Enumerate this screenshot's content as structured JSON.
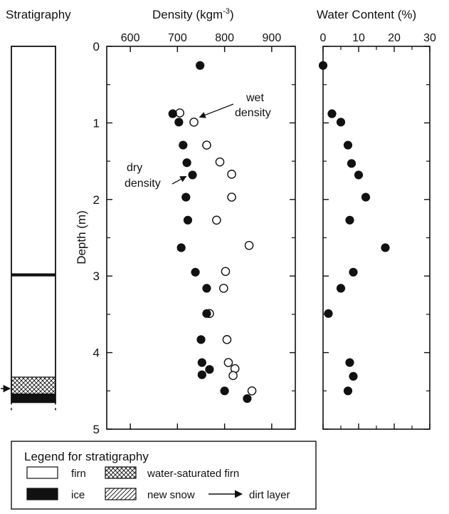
{
  "headers": {
    "stratigraphy": "Stratigraphy",
    "density": "Density (kgm",
    "density_sup": "-3",
    "density_close": ")",
    "water": "Water Content  (%)"
  },
  "chart_data": [
    {
      "type": "scatter",
      "panel": "density",
      "title": "Density (kgm-3)",
      "ylabel": "Depth (m)",
      "xlim": [
        550,
        950
      ],
      "ylim": [
        5,
        0
      ],
      "x_ticks": [
        600,
        700,
        800,
        900
      ],
      "y_ticks": [
        0,
        1,
        2,
        3,
        4,
        5
      ],
      "grid": false,
      "series": [
        {
          "name": "dry density",
          "marker": "filled-circle",
          "points": [
            {
              "x": 748,
              "y": 0.25
            },
            {
              "x": 690,
              "y": 0.88
            },
            {
              "x": 703,
              "y": 0.99
            },
            {
              "x": 712,
              "y": 1.29
            },
            {
              "x": 720,
              "y": 1.52
            },
            {
              "x": 732,
              "y": 1.68
            },
            {
              "x": 718,
              "y": 1.97
            },
            {
              "x": 722,
              "y": 2.27
            },
            {
              "x": 708,
              "y": 2.63
            },
            {
              "x": 738,
              "y": 2.95
            },
            {
              "x": 762,
              "y": 3.16
            },
            {
              "x": 762,
              "y": 3.49
            },
            {
              "x": 750,
              "y": 3.83
            },
            {
              "x": 752,
              "y": 4.13
            },
            {
              "x": 768,
              "y": 4.22
            },
            {
              "x": 752,
              "y": 4.29
            },
            {
              "x": 800,
              "y": 4.5
            },
            {
              "x": 848,
              "y": 4.6
            }
          ]
        },
        {
          "name": "wet density",
          "marker": "open-circle",
          "points": [
            {
              "x": 705,
              "y": 0.87
            },
            {
              "x": 735,
              "y": 0.99
            },
            {
              "x": 762,
              "y": 1.29
            },
            {
              "x": 790,
              "y": 1.51
            },
            {
              "x": 815,
              "y": 1.67
            },
            {
              "x": 815,
              "y": 1.97
            },
            {
              "x": 783,
              "y": 2.27
            },
            {
              "x": 852,
              "y": 2.6
            },
            {
              "x": 802,
              "y": 2.94
            },
            {
              "x": 798,
              "y": 3.16
            },
            {
              "x": 768,
              "y": 3.49
            },
            {
              "x": 805,
              "y": 3.83
            },
            {
              "x": 808,
              "y": 4.13
            },
            {
              "x": 822,
              "y": 4.21
            },
            {
              "x": 818,
              "y": 4.3
            },
            {
              "x": 858,
              "y": 4.5
            }
          ]
        }
      ],
      "annotations": [
        {
          "text_lines": [
            "wet",
            "density"
          ],
          "points_to": "wet density",
          "target": {
            "x": 735,
            "y": 0.99
          }
        },
        {
          "text_lines": [
            "dry",
            "density"
          ],
          "points_to": "dry density",
          "target": {
            "x": 732,
            "y": 1.68
          }
        }
      ]
    },
    {
      "type": "scatter",
      "panel": "water-content",
      "title": "Water Content (%)",
      "xlim": [
        0,
        30
      ],
      "ylim": [
        5,
        0
      ],
      "x_ticks": [
        0,
        10,
        20,
        30
      ],
      "y_ticks": [
        0,
        1,
        2,
        3,
        4,
        5
      ],
      "grid": false,
      "series": [
        {
          "name": "",
          "marker": "filled-circle",
          "points": [
            {
              "x": 0,
              "y": 0.25
            },
            {
              "x": 2.5,
              "y": 0.88
            },
            {
              "x": 5,
              "y": 0.99
            },
            {
              "x": 7,
              "y": 1.29
            },
            {
              "x": 8,
              "y": 1.53
            },
            {
              "x": 10,
              "y": 1.68
            },
            {
              "x": 12,
              "y": 1.97
            },
            {
              "x": 7.5,
              "y": 2.27
            },
            {
              "x": 17.5,
              "y": 2.63
            },
            {
              "x": 8.5,
              "y": 2.95
            },
            {
              "x": 5,
              "y": 3.16
            },
            {
              "x": 1.5,
              "y": 3.49
            },
            {
              "x": 7.5,
              "y": 4.13
            },
            {
              "x": 8.5,
              "y": 4.31
            },
            {
              "x": 7,
              "y": 4.5
            }
          ]
        }
      ]
    },
    {
      "type": "strip",
      "panel": "stratigraphy",
      "depth_range": [
        0,
        5
      ],
      "ice_layers": [
        {
          "top": 2.97,
          "bottom": 3.0
        },
        {
          "top": 4.54,
          "bottom": 4.65
        }
      ],
      "water_saturated_firn": [
        {
          "top": 4.32,
          "bottom": 4.54
        }
      ],
      "dirt_layer_depth": 4.47
    }
  ],
  "legend": {
    "title": "Legend for stratigraphy",
    "items": {
      "firn": "firn",
      "ice": "ice",
      "water_saturated": "water-saturated firn",
      "new_snow": "new snow",
      "dirt_layer": "dirt layer"
    }
  }
}
